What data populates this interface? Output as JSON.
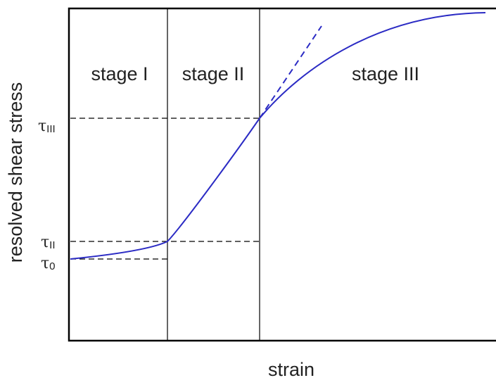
{
  "stages": [
    "stage I",
    "stage II",
    "stage III"
  ],
  "axes": {
    "y_label": "resolved shear stress",
    "x_label": "strain"
  },
  "levels": [
    {
      "symbol": "τ",
      "subscript": "III"
    },
    {
      "symbol": "τ",
      "subscript": "II"
    },
    {
      "symbol": "τ",
      "subscript": "0"
    }
  ]
}
